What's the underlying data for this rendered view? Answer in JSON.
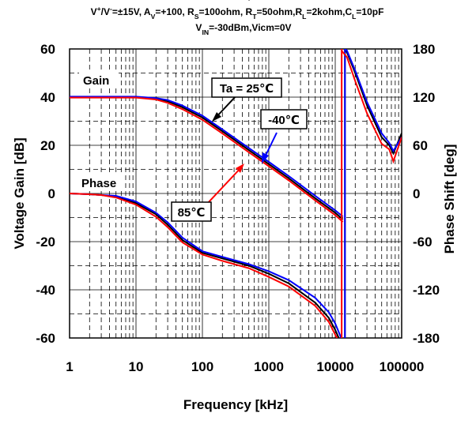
{
  "chart_data": {
    "type": "line",
    "title_cutoff": "(V",
    "conditions_line1": "V⁺/V⁻=±15V, A_V=+100, R_S=100ohm, R_T=50ohm,R_L=2kohm,C_L=10pF",
    "conditions_line2": "V_IN=-30dBm,Vicm=0V",
    "xlabel": "Frequency [kHz]",
    "ylabel_left": "Voltage Gain [dB]",
    "ylabel_right": "Phase Shift [deg]",
    "x_scale": "log",
    "xlim": [
      1,
      100000
    ],
    "ylim_left": [
      -60,
      60
    ],
    "ylim_right": [
      -180,
      180
    ],
    "grid": true,
    "x_ticks": [
      "1",
      "10",
      "100",
      "1000",
      "10000",
      "100000"
    ],
    "y_left_ticks": [
      "60",
      "40",
      "20",
      "0",
      "-20",
      "-40",
      "-60"
    ],
    "y_right_ticks": [
      "180",
      "120",
      "60",
      "0",
      "-60",
      "-120",
      "-180"
    ],
    "annotations": {
      "gain": "Gain",
      "phase": "Phase",
      "ta25": "Ta = 25℃",
      "m40": "-40℃",
      "t85": "85℃"
    },
    "series": [
      {
        "name": "Ta = 25℃",
        "color": "#000000",
        "gain": {
          "x": [
            1,
            3,
            10,
            20,
            30,
            50,
            100,
            200,
            500,
            1000,
            2000,
            5000,
            10000,
            13000
          ],
          "y": [
            40,
            40,
            40,
            39.3,
            38.3,
            35.8,
            31.5,
            25.8,
            18.0,
            12.2,
            6.3,
            -2.0,
            -8.0,
            -10.8
          ]
        },
        "phase": {
          "x": [
            1,
            2,
            3,
            5,
            10,
            20,
            30,
            50,
            100,
            200,
            500,
            1000,
            2000,
            5000,
            8000,
            10000,
            12000,
            13000,
            13500,
            14000,
            15000,
            20000,
            30000,
            50000,
            65000,
            75000,
            100000
          ],
          "y": [
            0,
            -1,
            -2,
            -4,
            -12,
            -26,
            -39,
            -58,
            -74,
            -81,
            -90,
            -100,
            -112,
            -136,
            -155,
            -170,
            -190,
            -215,
            -240,
            178,
            176,
            150,
            110,
            70,
            60,
            50,
            75
          ]
        }
      },
      {
        "name": "-40℃",
        "color": "#0000ff",
        "gain": {
          "x": [
            1,
            3,
            10,
            20,
            30,
            50,
            100,
            200,
            500,
            1000,
            2000,
            5000,
            10000,
            13000
          ],
          "y": [
            40.2,
            40.2,
            40.2,
            39.6,
            38.8,
            36.5,
            32.3,
            26.6,
            18.9,
            13.1,
            7.2,
            -1.0,
            -7.0,
            -9.6
          ]
        },
        "phase": {
          "x": [
            1,
            2,
            3,
            5,
            10,
            20,
            30,
            50,
            100,
            200,
            500,
            1000,
            2000,
            5000,
            8000,
            10000,
            12000,
            13000,
            13500,
            14000,
            15000,
            20000,
            30000,
            50000,
            65000,
            75000,
            100000
          ],
          "y": [
            0,
            -1,
            -2,
            -3,
            -10,
            -24,
            -36,
            -55,
            -72,
            -79,
            -88,
            -97,
            -108,
            -130,
            -148,
            -162,
            -178,
            -200,
            -225,
            180,
            178,
            153,
            114,
            75,
            63,
            53,
            70
          ]
        }
      },
      {
        "name": "85℃",
        "color": "#ff0000",
        "gain": {
          "x": [
            1,
            3,
            10,
            20,
            30,
            50,
            100,
            200,
            500,
            1000,
            2000,
            5000,
            10000,
            13000
          ],
          "y": [
            39.8,
            39.8,
            39.8,
            39.0,
            37.6,
            35.0,
            30.6,
            24.9,
            17.1,
            11.3,
            5.4,
            -2.9,
            -9.0,
            -11.8
          ]
        },
        "phase": {
          "x": [
            1,
            2,
            3,
            5,
            10,
            20,
            30,
            50,
            100,
            200,
            500,
            1000,
            2000,
            5000,
            8000,
            10000,
            11500,
            12000,
            12500,
            13000,
            15000,
            20000,
            30000,
            50000,
            65000,
            75000,
            100000
          ],
          "y": [
            0,
            -1,
            -2,
            -5,
            -14,
            -29,
            -42,
            -61,
            -76,
            -84,
            -93,
            -104,
            -116,
            -140,
            -160,
            -176,
            -200,
            -230,
            178,
            176,
            170,
            140,
            100,
            62,
            55,
            40,
            70
          ]
        }
      }
    ]
  }
}
